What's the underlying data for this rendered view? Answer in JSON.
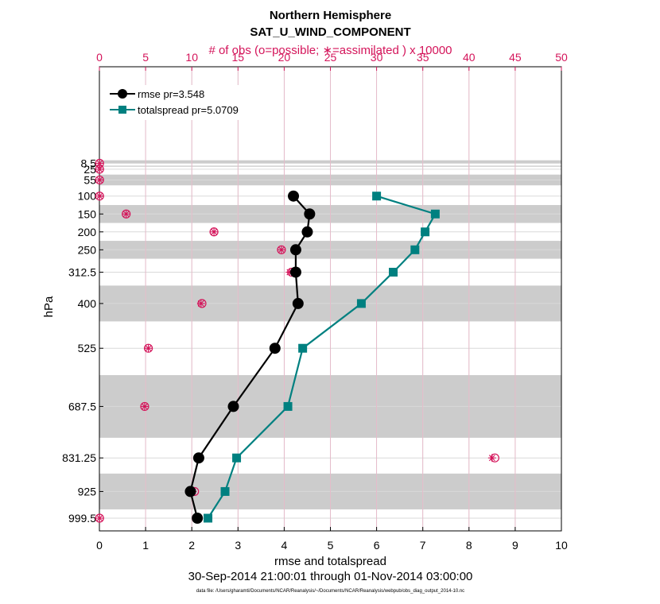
{
  "chart_data": {
    "type": "line",
    "title": "Northern Hemisphere",
    "subtitle": "SAT_U_WIND_COMPONENT",
    "top_axis_label": "# of obs (o=possible; ∗=assimilated ) x 10000",
    "xlabel": "rmse and totalspread",
    "ylabel": "hPa",
    "date_range": "30-Sep-2014 21:00:01 through 01-Nov-2014 03:00:00",
    "footnote": "data file: /Users/gharamti/Documents/NCAR/Reanalysis/~/Documents/NCAR/Reanalysis/webpub/obs_diag_output_2014-10.nc",
    "xlim": [
      0,
      10
    ],
    "top_xlim": [
      0,
      50
    ],
    "x_ticks": [
      "0",
      "1",
      "2",
      "3",
      "4",
      "5",
      "6",
      "7",
      "8",
      "9",
      "10"
    ],
    "top_ticks": [
      "0",
      "5",
      "10",
      "15",
      "20",
      "25",
      "30",
      "35",
      "40",
      "45",
      "50"
    ],
    "levels": [
      "8.5",
      "25",
      "55",
      "100",
      "150",
      "200",
      "250",
      "312.5",
      "400",
      "525",
      "687.5",
      "831.25",
      "925",
      "999.5"
    ],
    "level_values": [
      8.5,
      25,
      55,
      100,
      150,
      200,
      250,
      312.5,
      400,
      525,
      687.5,
      831.25,
      925,
      999.5
    ],
    "shaded_bands": [
      [
        0,
        8.5
      ],
      [
        15,
        18
      ],
      [
        40,
        70
      ],
      [
        125,
        175
      ],
      [
        225,
        275
      ],
      [
        350,
        450
      ],
      [
        600,
        775
      ],
      [
        875,
        975
      ]
    ],
    "series": [
      {
        "name": "rmse pr=3.548",
        "color": "#000000",
        "marker": "circle",
        "levels": [
          100,
          150,
          200,
          250,
          312.5,
          400,
          525,
          687.5,
          831.25,
          925,
          999.5
        ],
        "values": [
          4.2,
          4.55,
          4.5,
          4.25,
          4.25,
          4.3,
          3.8,
          2.9,
          2.15,
          1.97,
          2.12
        ]
      },
      {
        "name": "totalspread pr=5.0709",
        "color": "#008080",
        "marker": "square",
        "levels": [
          100,
          150,
          200,
          250,
          312.5,
          400,
          525,
          687.5,
          831.25,
          925,
          999.5
        ],
        "values": [
          6.0,
          7.27,
          7.05,
          6.83,
          6.36,
          5.67,
          4.4,
          4.08,
          2.97,
          2.72,
          2.35
        ]
      }
    ],
    "obs_counts": {
      "levels": [
        8.5,
        25,
        55,
        100,
        150,
        200,
        250,
        312.5,
        400,
        525,
        687.5,
        831.25,
        925,
        999.5
      ],
      "possible": [
        0.02,
        0.02,
        0.02,
        0.02,
        2.9,
        12.4,
        19.7,
        20.8,
        11.1,
        5.3,
        4.9,
        42.8,
        10.3,
        0.02
      ],
      "assimilated": [
        0.02,
        0.02,
        0.02,
        0.02,
        2.9,
        12.4,
        19.7,
        20.6,
        11.0,
        5.3,
        4.9,
        42.5,
        10.1,
        0.02
      ]
    },
    "colors": {
      "obs": "#d4145a",
      "band": "#cccccc",
      "grid": "#d9d9d9",
      "top_grid": "#e8b4c6"
    }
  }
}
